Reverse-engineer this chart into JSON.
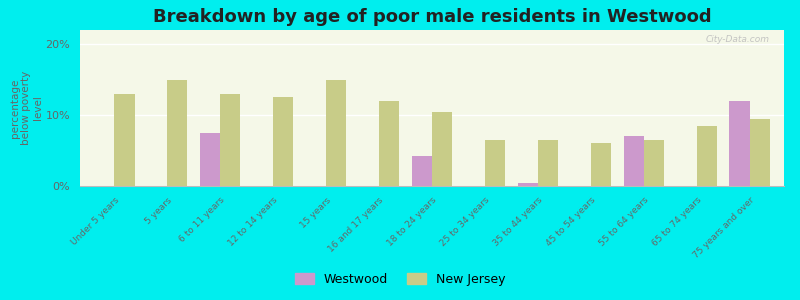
{
  "title": "Breakdown by age of poor male residents in Westwood",
  "categories": [
    "Under 5 years",
    "5 years",
    "6 to 11 years",
    "12 to 14 years",
    "15 years",
    "16 and 17 years",
    "18 to 24 years",
    "25 to 34 years",
    "35 to 44 years",
    "45 to 54 years",
    "55 to 64 years",
    "65 to 74 years",
    "75 years and over"
  ],
  "westwood": [
    0,
    0,
    7.5,
    0,
    0,
    0,
    4.2,
    0,
    0.4,
    0,
    7.0,
    0,
    12.0
  ],
  "new_jersey": [
    13.0,
    15.0,
    13.0,
    12.5,
    15.0,
    12.0,
    10.5,
    6.5,
    6.5,
    6.0,
    6.5,
    8.5,
    9.5
  ],
  "westwood_color": "#cc99cc",
  "nj_color": "#c8cc88",
  "background_color": "#00eeee",
  "plot_bg": "#f5f8e8",
  "ylabel": "percentage\nbelow poverty\nlevel",
  "ylim": [
    0,
    22
  ],
  "yticks": [
    0,
    10,
    20
  ],
  "ytick_labels": [
    "0%",
    "10%",
    "20%"
  ],
  "bar_width": 0.38,
  "title_fontsize": 13,
  "axis_label_fontsize": 7.5,
  "tick_label_fontsize": 6.5
}
